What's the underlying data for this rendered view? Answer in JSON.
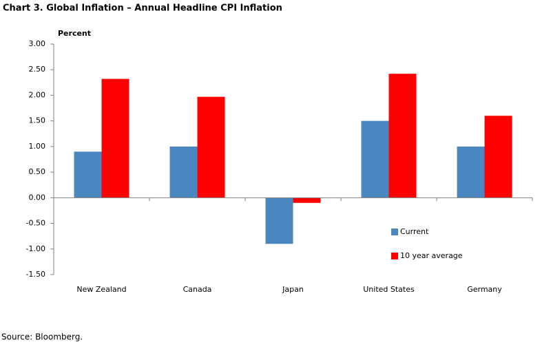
{
  "chart_data": {
    "type": "bar",
    "title": "Chart 3. Global Inflation – Annual Headline CPI Inflation",
    "y_label": "Percent",
    "source": "Source: Bloomberg.",
    "categories": [
      "New Zealand",
      "Canada",
      "Japan",
      "United States",
      "Germany"
    ],
    "series": [
      {
        "name": "Current",
        "color": "#4a86c0",
        "values": [
          0.9,
          1.0,
          -0.9,
          1.5,
          1.0
        ]
      },
      {
        "name": "10 year average",
        "color": "#ff0000",
        "values": [
          2.32,
          1.97,
          -0.1,
          2.42,
          1.6
        ]
      }
    ],
    "ylim": [
      -1.5,
      3.0
    ],
    "yticks": [
      {
        "value": -1.5,
        "label": "-1.50"
      },
      {
        "value": -1.0,
        "label": "-1.00"
      },
      {
        "value": -0.5,
        "label": "-0.50"
      },
      {
        "value": 0,
        "label": "0.00"
      },
      {
        "value": 0.5,
        "label": "0.50"
      },
      {
        "value": 1.0,
        "label": "1.00"
      },
      {
        "value": 1.5,
        "label": "1.50"
      },
      {
        "value": 2.0,
        "label": "2.00"
      },
      {
        "value": 2.5,
        "label": "2.50"
      },
      {
        "value": 3.0,
        "label": "3.00"
      }
    ],
    "grid": false,
    "legend_position": "right"
  }
}
